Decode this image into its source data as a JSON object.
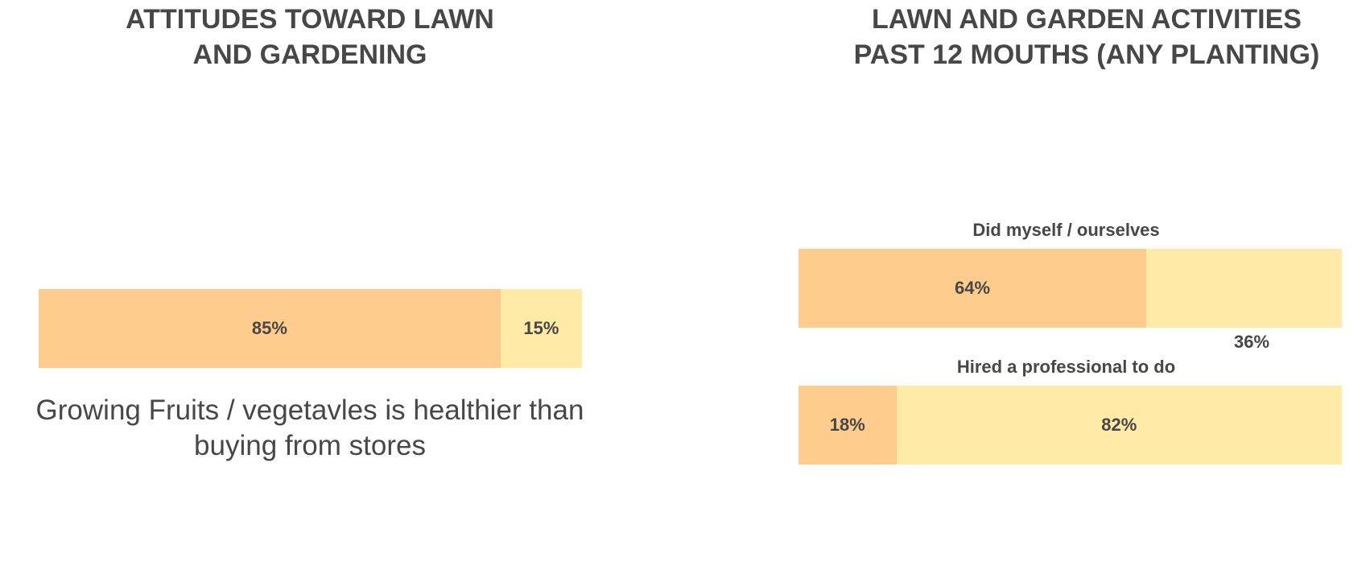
{
  "left_chart": {
    "title": "ATTITUDES TOWARD LAWN\nAND GARDENING",
    "caption": "Growing Fruits / vegetavles is healthier than buying from stores"
  },
  "right_chart": {
    "title": "LAWN AND GARDEN ACTIVITIES\nPAST 12 MOUTHS (ANY PLANTING)"
  },
  "colors": {
    "segment_primary": "#fecd8e",
    "segment_secondary": "#ffeaa8",
    "text": "#474747"
  },
  "chart_data": [
    {
      "type": "bar",
      "orientation": "horizontal-stacked-100",
      "title": "ATTITUDES TOWARD LAWN AND GARDENING",
      "rows": [
        {
          "label": "Growing Fruits / vegetavles is healthier than buying from stores",
          "values": [
            85,
            15
          ],
          "value_labels": [
            "85%",
            "15%"
          ]
        }
      ]
    },
    {
      "type": "bar",
      "orientation": "horizontal-stacked-100",
      "title": "LAWN AND GARDEN ACTIVITIES PAST 12 MOUTHS (ANY PLANTING)",
      "rows": [
        {
          "label": "Did myself / ourselves",
          "values": [
            64,
            36
          ],
          "value_labels": [
            "64%",
            "36%"
          ]
        },
        {
          "label": "Hired a professional to do",
          "values": [
            18,
            82
          ],
          "value_labels": [
            "18%",
            "82%"
          ]
        }
      ]
    }
  ]
}
